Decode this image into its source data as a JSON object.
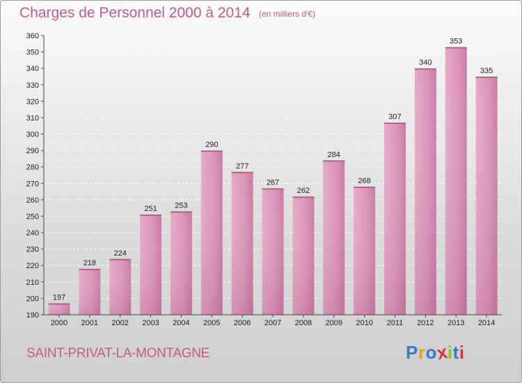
{
  "header": {
    "title": "Charges de Personnel 2000 à 2014",
    "subtitle": "(en milliers d'€)"
  },
  "footer": {
    "town": "SAINT-PRIVAT-LA-MONTAGNE",
    "logo_letters": [
      "P",
      "r",
      "o",
      "x",
      "i",
      "t",
      "i"
    ],
    "logo_colors": [
      "#2f7fc4",
      "#e8a01e",
      "#2f7fc4",
      "#d8313f",
      "#8fbf2d",
      "#2f7fc4",
      "#d8313f"
    ]
  },
  "chart_data": {
    "type": "bar",
    "title": "Charges de Personnel 2000 à 2014",
    "subtitle": "(en milliers d'€)",
    "categories": [
      "2000",
      "2001",
      "2002",
      "2003",
      "2004",
      "2005",
      "2006",
      "2007",
      "2008",
      "2009",
      "2010",
      "2011",
      "2012",
      "2013",
      "2014"
    ],
    "values": [
      197,
      218,
      224,
      251,
      253,
      290,
      277,
      267,
      262,
      284,
      268,
      307,
      340,
      353,
      335
    ],
    "ylim": [
      190,
      360
    ],
    "yticks": [
      190,
      200,
      210,
      220,
      230,
      240,
      250,
      260,
      270,
      280,
      290,
      300,
      310,
      320,
      330,
      340,
      350,
      360
    ],
    "grid": true,
    "bar_color": "#d98db5"
  }
}
